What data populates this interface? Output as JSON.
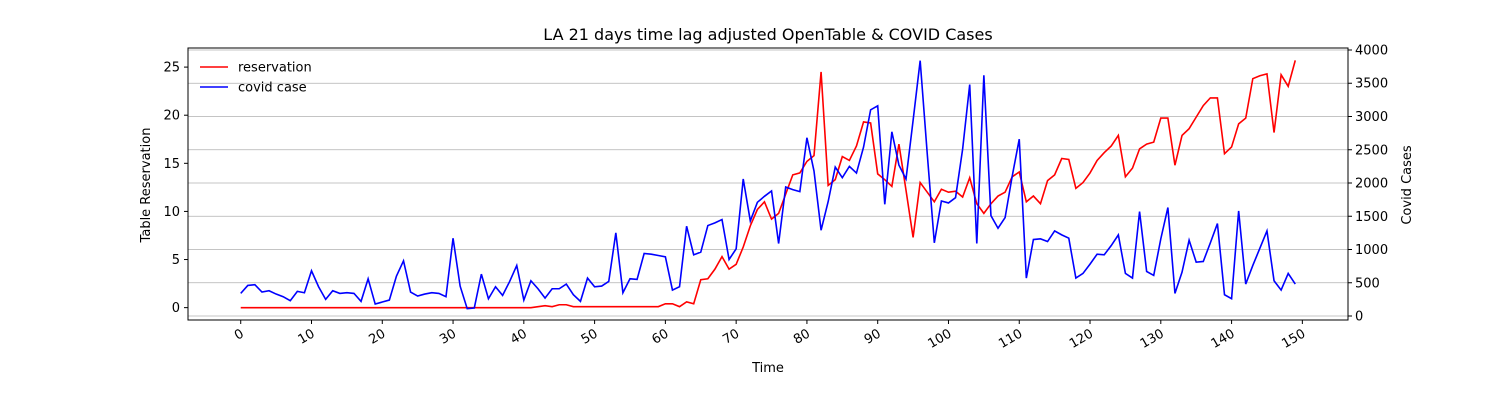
{
  "chart_data": {
    "type": "line",
    "title": "LA 21 days time lag adjusted OpenTable & COVID Cases",
    "x_label": "Time",
    "y_label": "Table Reservation",
    "y2_label": "Covid Cases",
    "x": [
      0,
      1,
      2,
      3,
      4,
      5,
      6,
      7,
      8,
      9,
      10,
      11,
      12,
      13,
      14,
      15,
      16,
      17,
      18,
      19,
      20,
      21,
      22,
      23,
      24,
      25,
      26,
      27,
      28,
      29,
      30,
      31,
      32,
      33,
      34,
      35,
      36,
      37,
      38,
      39,
      40,
      41,
      42,
      43,
      44,
      45,
      46,
      47,
      48,
      49,
      50,
      51,
      52,
      53,
      54,
      55,
      56,
      57,
      58,
      59,
      60,
      61,
      62,
      63,
      64,
      65,
      66,
      67,
      68,
      69,
      70,
      71,
      72,
      73,
      74,
      75,
      76,
      77,
      78,
      79,
      80,
      81,
      82,
      83,
      84,
      85,
      86,
      87,
      88,
      89,
      90,
      91,
      92,
      93,
      94,
      95,
      96,
      97,
      98,
      99,
      100,
      101,
      102,
      103,
      104,
      105,
      106,
      107,
      108,
      109,
      110,
      111,
      112,
      113,
      114,
      115,
      116,
      117,
      118,
      119,
      120,
      121,
      122,
      123,
      124,
      125,
      126,
      127,
      128,
      129,
      130,
      131,
      132,
      133,
      134,
      135,
      136,
      137,
      138,
      139,
      140,
      141,
      142,
      143,
      144,
      145,
      146,
      147,
      148,
      149
    ],
    "series": [
      {
        "name": "reservation",
        "color": "#ff0000",
        "axis": "y",
        "values": [
          0,
          0,
          0,
          0,
          0,
          0,
          0,
          0,
          0,
          0,
          0,
          0,
          0,
          0,
          0,
          0,
          0,
          0,
          0,
          0,
          0,
          0,
          0,
          0,
          0,
          0,
          0,
          0,
          0,
          0,
          0,
          0,
          0,
          0,
          0,
          0,
          0,
          0,
          0,
          0,
          0,
          0,
          0.1,
          0.2,
          0.1,
          0.3,
          0.3,
          0.1,
          0.1,
          0.1,
          0.1,
          0.1,
          0.1,
          0.1,
          0.1,
          0.1,
          0.1,
          0.1,
          0.1,
          0.1,
          0.4,
          0.4,
          0.1,
          0.6,
          0.4,
          2.9,
          3.0,
          4.0,
          5.3,
          4.0,
          4.5,
          6.3,
          8.5,
          10.2,
          11.0,
          9.2,
          9.8,
          11.8,
          13.8,
          14.0,
          15.2,
          15.8,
          24.5,
          12.7,
          13.3,
          15.7,
          15.3,
          16.8,
          19.3,
          19.2,
          13.9,
          13.3,
          12.6,
          17.0,
          12.2,
          7.3,
          13.0,
          12.0,
          11.0,
          12.3,
          12.0,
          12.1,
          11.5,
          13.5,
          10.8,
          9.8,
          10.8,
          11.6,
          12.0,
          13.6,
          14.1,
          11.0,
          11.6,
          10.8,
          13.2,
          13.8,
          15.5,
          15.4,
          12.4,
          13.0,
          14.0,
          15.3,
          16.1,
          16.8,
          17.9,
          13.6,
          14.5,
          16.5,
          17.0,
          17.2,
          19.7,
          19.7,
          14.8,
          17.9,
          18.6,
          19.8,
          21.0,
          21.8,
          21.8,
          16.0,
          16.7,
          19.1,
          19.7,
          23.8,
          24.1,
          24.3,
          18.2,
          24.2,
          23.0,
          25.7
        ]
      },
      {
        "name": "covid case",
        "color": "#0000ff",
        "axis": "y2",
        "values": [
          340,
          460,
          470,
          360,
          380,
          330,
          290,
          230,
          370,
          350,
          680,
          440,
          250,
          380,
          340,
          350,
          340,
          220,
          560,
          180,
          210,
          240,
          600,
          830,
          360,
          300,
          330,
          350,
          340,
          290,
          1170,
          450,
          110,
          120,
          630,
          260,
          440,
          310,
          520,
          760,
          240,
          530,
          410,
          270,
          410,
          410,
          480,
          320,
          220,
          570,
          440,
          450,
          520,
          1250,
          350,
          560,
          550,
          940,
          930,
          910,
          890,
          390,
          440,
          1350,
          920,
          960,
          1360,
          1400,
          1450,
          850,
          1010,
          2060,
          1430,
          1710,
          1800,
          1880,
          1090,
          1940,
          1900,
          1870,
          2680,
          2180,
          1290,
          1720,
          2240,
          2080,
          2250,
          2150,
          2540,
          3100,
          3160,
          1680,
          2770,
          2270,
          2060,
          2940,
          3840,
          2440,
          1100,
          1730,
          1700,
          1780,
          2510,
          3480,
          1090,
          3620,
          1510,
          1320,
          1480,
          2100,
          2660,
          570,
          1150,
          1160,
          1120,
          1280,
          1220,
          1170,
          570,
          640,
          780,
          930,
          920,
          1060,
          1220,
          640,
          570,
          1570,
          670,
          610,
          1160,
          1630,
          340,
          660,
          1140,
          810,
          820,
          1100,
          1390,
          320,
          260,
          1580,
          480,
          760,
          1020,
          1280,
          530,
          390,
          640,
          480
        ]
      }
    ],
    "xlim": [
      -7.45,
      156.45
    ],
    "xticks": [
      0,
      10,
      20,
      30,
      40,
      50,
      60,
      70,
      80,
      90,
      100,
      110,
      120,
      130,
      140,
      150
    ],
    "ylim": [
      -1.285,
      26.985
    ],
    "yticks": [
      0,
      5,
      10,
      15,
      20,
      25
    ],
    "y2lim": [
      -60,
      4030
    ],
    "y2ticks": [
      0,
      500,
      1000,
      1500,
      2000,
      2500,
      3000,
      3500,
      4000
    ],
    "grid": "y2",
    "legend": "upper left"
  }
}
